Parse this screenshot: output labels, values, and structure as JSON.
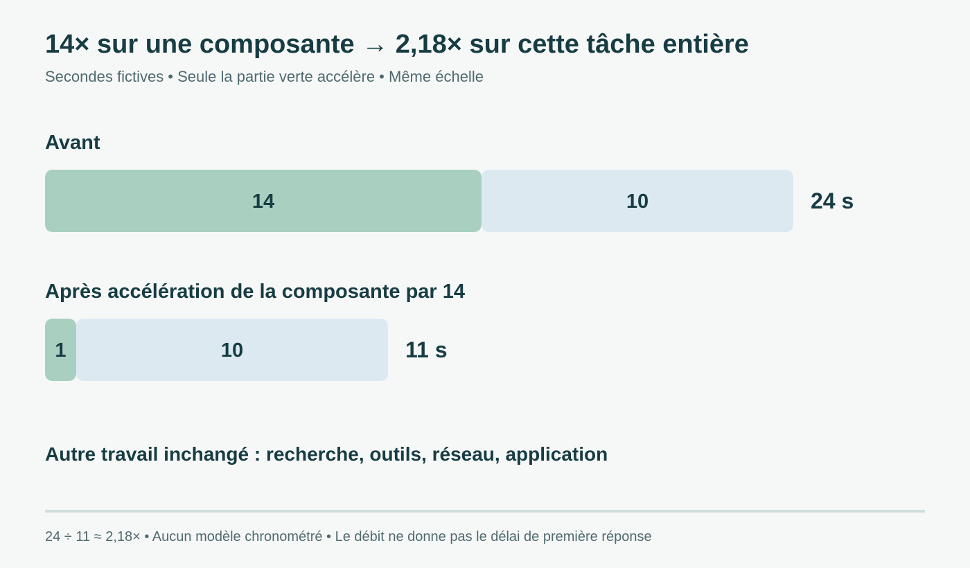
{
  "header": {
    "title": "14× sur une composante → 2,18× sur cette tâche entière",
    "subtitle": "Secondes fictives • Seule la partie verte accélère • Même échelle"
  },
  "chart_data": {
    "type": "bar",
    "orientation": "horizontal",
    "stacked": true,
    "unit": "s",
    "colors": {
      "accelerated": "#a8cfbf",
      "unchanged": "#dce9f1",
      "text": "#173c43"
    },
    "rows": [
      {
        "label": "Avant",
        "segments": [
          {
            "part": "accelerated",
            "value": 14,
            "label": "14"
          },
          {
            "part": "unchanged",
            "value": 10,
            "label": "10"
          }
        ],
        "total": 24,
        "total_label": "24 s"
      },
      {
        "label": "Après accélération de la composante par 14",
        "segments": [
          {
            "part": "accelerated",
            "value": 1,
            "label": "1"
          },
          {
            "part": "unchanged",
            "value": 10,
            "label": "10"
          }
        ],
        "total": 11,
        "total_label": "11 s"
      }
    ]
  },
  "note": "Autre travail inchangé : recherche, outils, réseau, application",
  "footer": "24 ÷ 11 ≈ 2,18× • Aucun modèle chronométré • Le débit ne donne pas le délai de première réponse"
}
